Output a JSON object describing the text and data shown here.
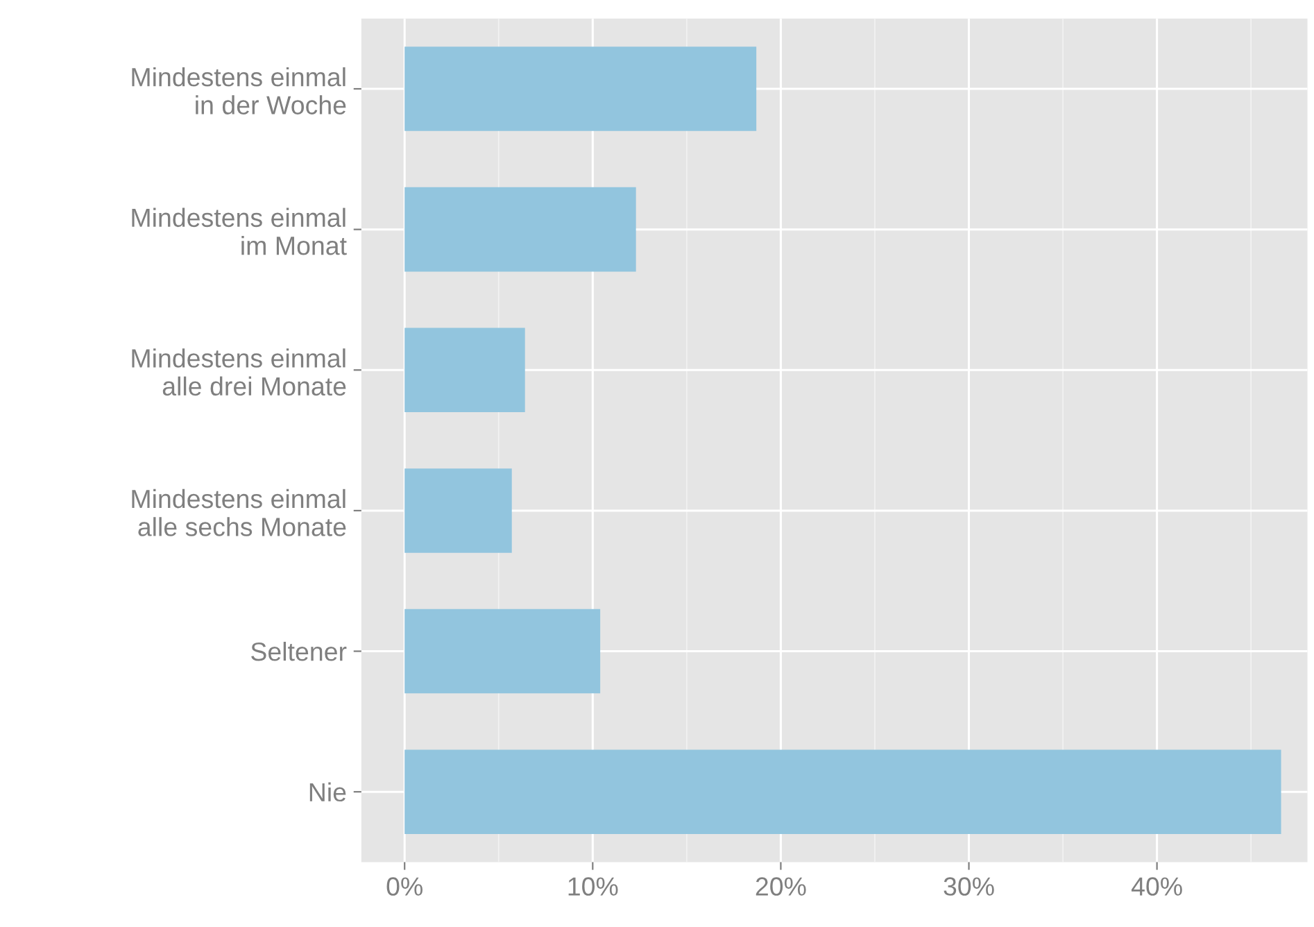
{
  "chart_data": {
    "type": "bar",
    "orientation": "horizontal",
    "categories": [
      "Mindestens einmal\nin der Woche",
      "Mindestens einmal\nim Monat",
      "Mindestens einmal\nalle drei Monate",
      "Mindestens einmal\nalle sechs Monate",
      "Seltener",
      "Nie"
    ],
    "values": [
      18.7,
      12.3,
      6.4,
      5.7,
      10.4,
      46.6
    ],
    "color": "#92c5de",
    "xlim": [
      -2.3,
      48.0
    ],
    "xticks": [
      {
        "value": 0,
        "label": "0%"
      },
      {
        "value": 10,
        "label": "10%"
      },
      {
        "value": 20,
        "label": "20%"
      },
      {
        "value": 30,
        "label": "30%"
      },
      {
        "value": 40,
        "label": "40%"
      }
    ],
    "grid": true,
    "legend": false
  }
}
